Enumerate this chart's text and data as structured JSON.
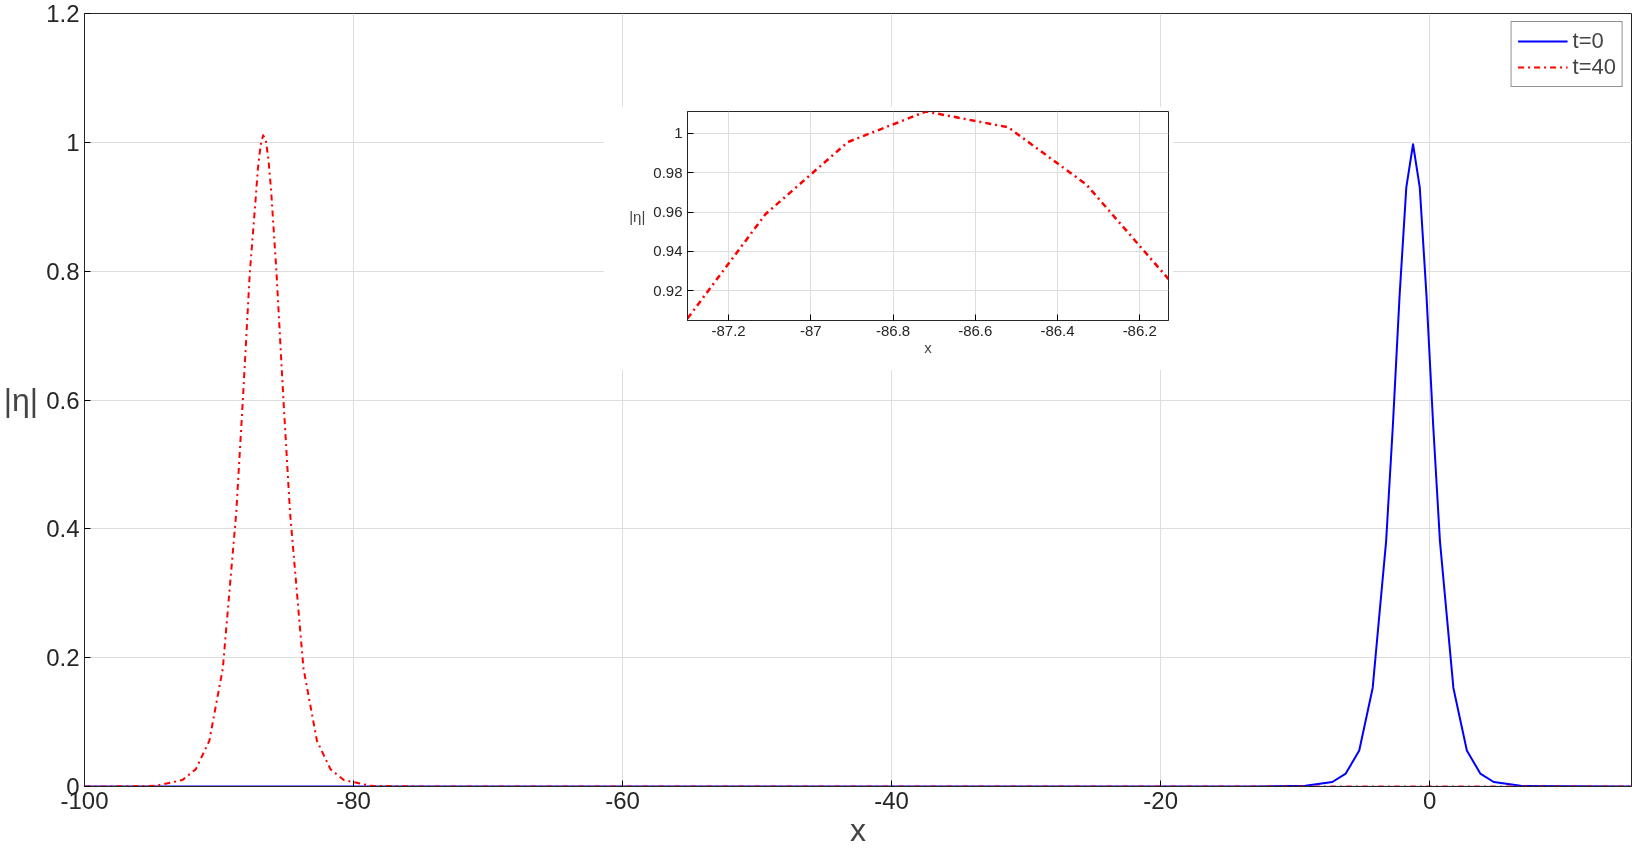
{
  "chart_data": [
    {
      "type": "line",
      "xlabel": "x",
      "ylabel": "|η|",
      "xlim": [
        -100,
        15
      ],
      "ylim": [
        0,
        1.2
      ],
      "xticks": [
        -100,
        -80,
        -60,
        -40,
        -20,
        0
      ],
      "yticks": [
        0,
        0.2,
        0.4,
        0.6,
        0.8,
        1,
        1.2
      ],
      "grid": true,
      "legend": "top right",
      "series": [
        {
          "name": "t=0",
          "color": "#0000ff",
          "line_style": "solid",
          "x": [
            -100,
            -20,
            -13.24,
            -9.24,
            -7.24,
            -6.24,
            -5.24,
            -4.24,
            -3.24,
            -2.74,
            -2.24,
            -1.74,
            -1.24,
            -0.74,
            -0.24,
            0.26,
            0.76,
            1.76,
            2.76,
            3.76,
            4.76,
            6.76,
            15
          ],
          "values": [
            0,
            0,
            0,
            0.001,
            0.007,
            0.02,
            0.056,
            0.153,
            0.381,
            0.56,
            0.762,
            0.93,
            0.997,
            0.93,
            0.762,
            0.56,
            0.381,
            0.153,
            0.056,
            0.02,
            0.007,
            0.001,
            0
          ]
        },
        {
          "name": "t=40",
          "color": "#ff0000",
          "line_style": "dashdot",
          "x": [
            -100,
            -98.72,
            -94.72,
            -92.72,
            -91.72,
            -90.72,
            -89.72,
            -88.72,
            -88.22,
            -87.72,
            -87.3,
            -87.11,
            -86.91,
            -86.72,
            -86.52,
            -86.33,
            -86.13,
            -85.72,
            -85.22,
            -84.72,
            -83.72,
            -82.72,
            -81.72,
            -80.72,
            -78.72,
            -74.72,
            15
          ],
          "values": [
            0,
            0,
            0.001,
            0.01,
            0.027,
            0.071,
            0.183,
            0.425,
            0.603,
            0.795,
            0.906,
            0.959,
            0.9955,
            1.011,
            1.003,
            0.974,
            0.926,
            0.795,
            0.603,
            0.425,
            0.183,
            0.071,
            0.027,
            0.01,
            0.001,
            0,
            0
          ]
        }
      ]
    },
    {
      "type": "line",
      "xlabel": "x",
      "ylabel": "|η|",
      "xlim": [
        -87.3,
        -86.13
      ],
      "ylim": [
        0.905,
        1.011
      ],
      "xticks": [
        -87.2,
        -87,
        -86.8,
        -86.6,
        -86.4,
        -86.2
      ],
      "yticks": [
        0.92,
        0.94,
        0.96,
        0.98,
        1
      ],
      "grid": true,
      "series": [
        {
          "color": "#ff0000",
          "line_style": "dashdot",
          "x": [
            -87.3,
            -87.11,
            -86.91,
            -86.72,
            -86.52,
            -86.33,
            -86.13
          ],
          "values": [
            0.906,
            0.959,
            0.9955,
            1.011,
            1.003,
            0.974,
            0.926
          ]
        }
      ]
    }
  ]
}
